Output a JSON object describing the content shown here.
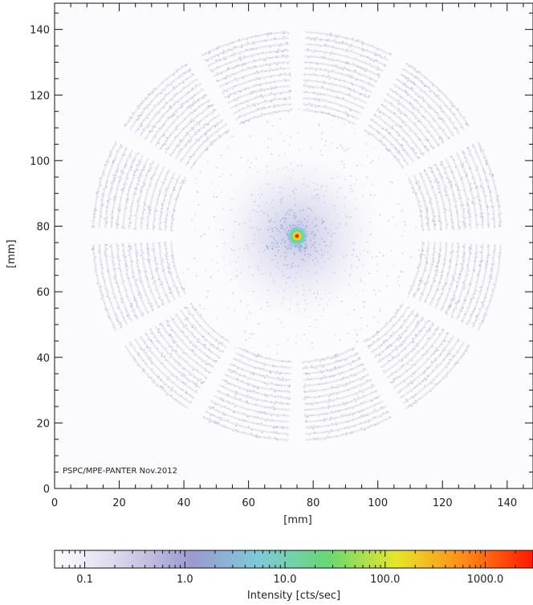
{
  "chart_data": {
    "type": "heatmap",
    "title": "",
    "xlabel": "[mm]",
    "ylabel": "[mm]",
    "xlim": [
      0,
      148
    ],
    "ylim": [
      0,
      148
    ],
    "x_ticks": [
      0,
      20,
      40,
      60,
      80,
      100,
      120,
      140
    ],
    "y_ticks": [
      0,
      20,
      40,
      60,
      80,
      100,
      120,
      140
    ],
    "x_tick_labels": [
      "0",
      "20",
      "40",
      "60",
      "80",
      "100",
      "120",
      "140"
    ],
    "y_tick_labels": [
      "0",
      "20",
      "40",
      "60",
      "80",
      "100",
      "120",
      "140"
    ],
    "grid": false,
    "annotation": "PSPC/MPE-PANTER Nov.2012",
    "image": {
      "description_kind": "point-spread pattern with bright central spot and ring-shaped shell segments",
      "center_mm": [
        75,
        77
      ],
      "peak_intensity_cts_per_sec": 2000,
      "ring_inner_radius_mm": 38,
      "ring_outer_radius_mm": 64,
      "ring_segments": 12,
      "segment_gap_deg_center": [
        0,
        30,
        60,
        90,
        120,
        150,
        180,
        210,
        240,
        270,
        300,
        330
      ]
    },
    "colorbar": {
      "label": "Intensity [cts/sec]",
      "scale": "log",
      "range": [
        0.05,
        3000
      ],
      "tick_values": [
        0.1,
        1.0,
        10.0,
        100.0,
        1000.0
      ],
      "tick_labels": [
        "0.1",
        "1.0",
        "10.0",
        "100.0",
        "1000.0"
      ],
      "colormap": [
        "#ffffff",
        "#d8d2ea",
        "#9a9ad0",
        "#7ecad8",
        "#66d873",
        "#e6e62a",
        "#ff8a18",
        "#ff1a00"
      ]
    }
  }
}
